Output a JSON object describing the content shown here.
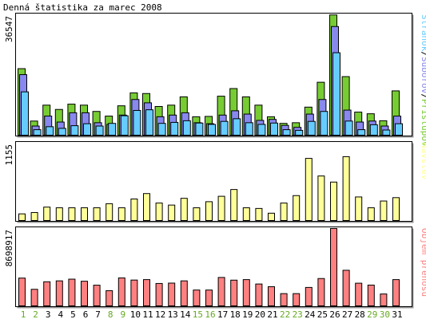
{
  "title": "Denná štatistika za marec 2008",
  "colors": {
    "pages": "#66ccff",
    "files": "#8888ee",
    "hits": "#77cc33",
    "visits": "#ffff99",
    "volume": "#ff8080",
    "weekday": "#000000",
    "weekend": "#66aa22",
    "frame": "#000000"
  },
  "panels": [
    {
      "ylabel": "36547",
      "legend": [
        {
          "text": "Stránok",
          "color": "#66ccff"
        },
        {
          "text": "/",
          "color": "#000000"
        },
        {
          "text": "Súborov",
          "color": "#8888ee"
        },
        {
          "text": "/",
          "color": "#000000"
        },
        {
          "text": "Prístupov",
          "color": "#77cc33"
        }
      ]
    },
    {
      "ylabel": "1155",
      "legend": [
        {
          "text": "Návštev",
          "color": "#ffff99"
        }
      ]
    },
    {
      "ylabel": "8698917",
      "legend": [
        {
          "text": "Objem prenosu",
          "color": "#ff8080"
        }
      ]
    }
  ],
  "days": [
    "1",
    "2",
    "3",
    "4",
    "5",
    "6",
    "7",
    "8",
    "9",
    "10",
    "11",
    "12",
    "13",
    "14",
    "15",
    "16",
    "17",
    "18",
    "19",
    "20",
    "21",
    "22",
    "23",
    "24",
    "25",
    "26",
    "27",
    "28",
    "29",
    "30",
    "31"
  ],
  "weekend_days": [
    "1",
    "2",
    "8",
    "9",
    "15",
    "16",
    "22",
    "23",
    "29",
    "30"
  ],
  "chart_data": [
    {
      "type": "bar",
      "title": "",
      "xlabel": "",
      "ylabel": "36547",
      "ylim": [
        0,
        36547
      ],
      "categories": [
        "1",
        "2",
        "3",
        "4",
        "5",
        "6",
        "7",
        "8",
        "9",
        "10",
        "11",
        "12",
        "13",
        "14",
        "15",
        "16",
        "17",
        "18",
        "19",
        "20",
        "21",
        "22",
        "23",
        "24",
        "25",
        "26",
        "27",
        "28",
        "29",
        "30",
        "31"
      ],
      "series": [
        {
          "name": "Prístupov",
          "values": [
            20300,
            4500,
            9300,
            8000,
            9600,
            9300,
            7400,
            6000,
            9100,
            13000,
            12800,
            8900,
            9300,
            11800,
            5800,
            5900,
            12000,
            14300,
            11800,
            9300,
            5800,
            3800,
            4000,
            8700,
            16200,
            36500,
            17900,
            7200,
            6700,
            4600,
            13600
          ]
        },
        {
          "name": "Súborov",
          "values": [
            18500,
            3000,
            6000,
            4200,
            7000,
            7000,
            4000,
            3500,
            6300,
            11000,
            10000,
            5800,
            6300,
            7000,
            4000,
            3700,
            6300,
            7600,
            6600,
            4700,
            5000,
            3200,
            2600,
            6600,
            11000,
            33000,
            7800,
            4200,
            4500,
            3000,
            6000
          ]
        },
        {
          "name": "Stránok",
          "values": [
            13300,
            1900,
            2800,
            2300,
            3100,
            3700,
            3000,
            3800,
            6100,
            7700,
            7900,
            3800,
            4100,
            4600,
            3900,
            3500,
            4400,
            5200,
            4000,
            3500,
            3900,
            1900,
            1700,
            4400,
            7400,
            25100,
            4500,
            1900,
            3400,
            1800,
            3700
          ]
        }
      ]
    },
    {
      "type": "bar",
      "title": "",
      "xlabel": "",
      "ylabel": "1155",
      "ylim": [
        0,
        1155
      ],
      "categories": [
        "1",
        "2",
        "3",
        "4",
        "5",
        "6",
        "7",
        "8",
        "9",
        "10",
        "11",
        "12",
        "13",
        "14",
        "15",
        "16",
        "17",
        "18",
        "19",
        "20",
        "21",
        "22",
        "23",
        "24",
        "25",
        "26",
        "27",
        "28",
        "29",
        "30",
        "31"
      ],
      "series": [
        {
          "name": "Návštev",
          "values": [
            110,
            130,
            210,
            200,
            200,
            200,
            200,
            260,
            200,
            330,
            410,
            270,
            240,
            340,
            200,
            290,
            370,
            470,
            200,
            190,
            120,
            270,
            380,
            930,
            670,
            580,
            955,
            360,
            200,
            300,
            350
          ]
        }
      ]
    },
    {
      "type": "bar",
      "title": "",
      "xlabel": "",
      "ylabel": "8698917",
      "ylim": [
        0,
        8698917
      ],
      "categories": [
        "1",
        "2",
        "3",
        "4",
        "5",
        "6",
        "7",
        "8",
        "9",
        "10",
        "11",
        "12",
        "13",
        "14",
        "15",
        "16",
        "17",
        "18",
        "19",
        "20",
        "21",
        "22",
        "23",
        "24",
        "25",
        "26",
        "27",
        "28",
        "29",
        "30",
        "31"
      ],
      "series": [
        {
          "name": "Objem prenosu",
          "values": [
            3180000,
            1930000,
            2770000,
            2870000,
            3060000,
            2830000,
            2390000,
            1780000,
            3200000,
            2960000,
            3010000,
            2580000,
            2620000,
            2870000,
            1850000,
            1850000,
            3250000,
            2950000,
            3010000,
            2520000,
            2220000,
            1450000,
            1450000,
            2140000,
            3130000,
            8700000,
            4050000,
            2610000,
            2400000,
            1410000,
            3010000
          ]
        }
      ]
    }
  ]
}
